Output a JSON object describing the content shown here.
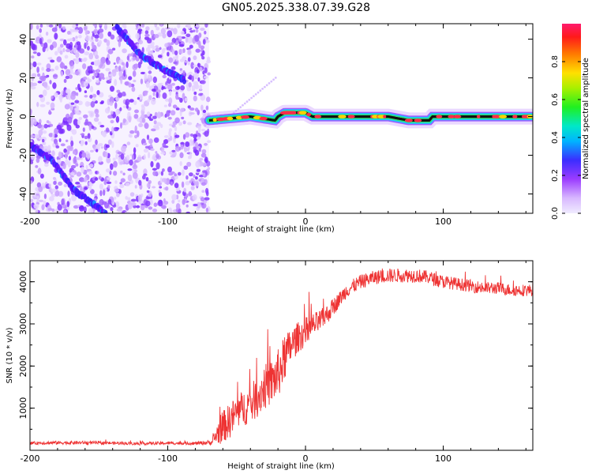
{
  "title": "GN05.2025.338.07.39.G28",
  "chart_data": [
    {
      "type": "heatmap",
      "title": "GN05.2025.338.07.39.G28",
      "xlabel": "Height of straight line (km)",
      "ylabel": "Frequency (Hz)",
      "xlim": [
        -200,
        165
      ],
      "ylim": [
        -50,
        48
      ],
      "x_ticks": [
        "-200",
        "-100",
        "0",
        "100"
      ],
      "y_ticks": [
        "40",
        "20",
        "0",
        "-20",
        "-40"
      ],
      "colorbar": {
        "label": "Normalized spectral amplitude",
        "range": [
          0,
          1
        ],
        "ticks": [
          "0.0",
          "0.2",
          "0.4",
          "0.6",
          "0.8"
        ]
      },
      "noise_region_x": [
        -200,
        -70
      ],
      "dominant_frequency_track": [
        {
          "x": -70,
          "y": -2
        },
        {
          "x": -55,
          "y": -1
        },
        {
          "x": -40,
          "y": 0
        },
        {
          "x": -22,
          "y": -2
        },
        {
          "x": -20,
          "y": 0
        },
        {
          "x": -15,
          "y": 2
        },
        {
          "x": 0,
          "y": 2
        },
        {
          "x": 5,
          "y": 0
        },
        {
          "x": 20,
          "y": 0
        },
        {
          "x": 40,
          "y": 0
        },
        {
          "x": 60,
          "y": 0
        },
        {
          "x": 75,
          "y": -2
        },
        {
          "x": 90,
          "y": -2
        },
        {
          "x": 92,
          "y": 0
        },
        {
          "x": 120,
          "y": 0
        },
        {
          "x": 165,
          "y": 0
        }
      ],
      "doppler_streaks": [
        {
          "points": [
            {
              "x": -137,
              "y": 46
            },
            {
              "x": -120,
              "y": 32
            },
            {
              "x": -100,
              "y": 23
            },
            {
              "x": -88,
              "y": 19
            }
          ]
        },
        {
          "points": [
            {
              "x": -200,
              "y": -15
            },
            {
              "x": -185,
              "y": -22
            },
            {
              "x": -168,
              "y": -38
            },
            {
              "x": -145,
              "y": -50
            }
          ]
        }
      ]
    },
    {
      "type": "line",
      "xlabel": "Height of straight line (km)",
      "ylabel": "SNR (10 * v/v)",
      "xlim": [
        -200,
        165
      ],
      "ylim": [
        0,
        4500
      ],
      "x_ticks": [
        "-200",
        "-100",
        "0",
        "100"
      ],
      "y_ticks": [
        "1000",
        "2000",
        "3000",
        "4000"
      ],
      "series": [
        {
          "color": "#ee3333",
          "x": [
            -200,
            -180,
            -160,
            -140,
            -120,
            -100,
            -80,
            -68,
            -62,
            -55,
            -50,
            -45,
            -40,
            -35,
            -30,
            -25,
            -20,
            -15,
            -10,
            -5,
            0,
            5,
            10,
            15,
            20,
            25,
            30,
            40,
            50,
            60,
            70,
            80,
            90,
            100,
            110,
            120,
            130,
            140,
            150,
            165
          ],
          "values": [
            170,
            180,
            180,
            170,
            160,
            170,
            165,
            190,
            500,
            700,
            900,
            1000,
            1100,
            1250,
            1500,
            1600,
            1800,
            2200,
            2500,
            2700,
            2800,
            2950,
            3050,
            3200,
            3400,
            3600,
            3800,
            4000,
            4100,
            4150,
            4150,
            4150,
            4100,
            4000,
            3950,
            3900,
            3850,
            3850,
            3800,
            3800
          ],
          "noise_amplitude": [
            60,
            70,
            70,
            60,
            60,
            60,
            60,
            100,
            600,
            700,
            700,
            700,
            800,
            800,
            900,
            900,
            1000,
            900,
            700,
            600,
            600,
            500,
            450,
            400,
            350,
            300,
            300,
            280,
            280,
            280,
            280,
            280,
            260,
            260,
            250,
            250,
            250,
            240,
            240,
            240
          ]
        }
      ]
    }
  ]
}
